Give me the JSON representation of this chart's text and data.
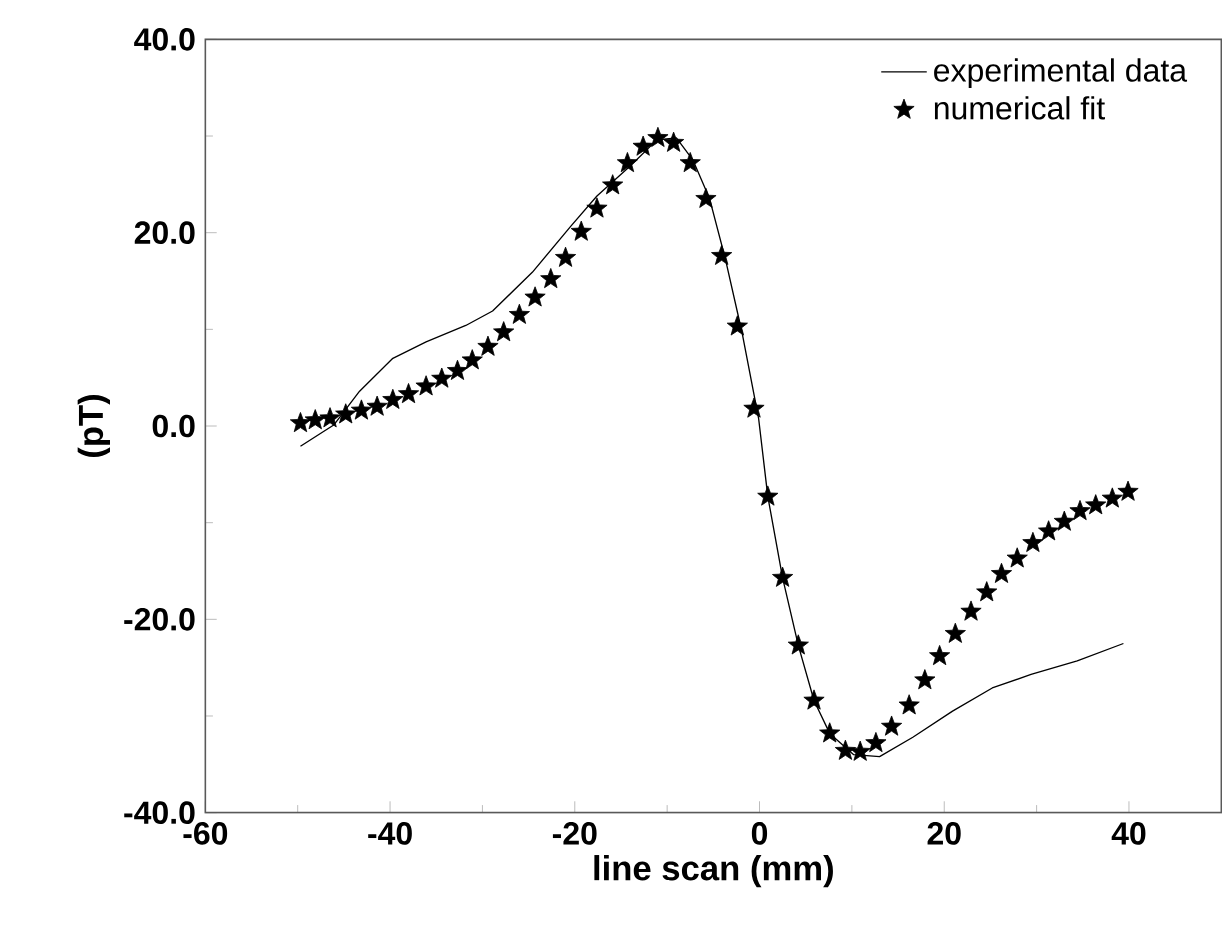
{
  "chart_data": {
    "type": "line",
    "xlabel": "line scan (mm)",
    "ylabel": "(pT)",
    "xlim": [
      -60,
      50
    ],
    "ylim": [
      -40,
      40
    ],
    "xticks": [
      -60,
      -40,
      -20,
      0,
      20,
      40
    ],
    "yticks": [
      {
        "value": -40,
        "label": "-40.0"
      },
      {
        "value": -20,
        "label": "-20.0"
      },
      {
        "value": 0,
        "label": "0.0"
      },
      {
        "value": 20,
        "label": "20.0"
      },
      {
        "value": 40,
        "label": "40.0"
      }
    ],
    "legend": "top right",
    "grid": false,
    "series": [
      {
        "name": "experimental data",
        "color": "#000000",
        "line_style": "solid",
        "marker": "none",
        "x": [
          -49.7,
          -46.1,
          -43.3,
          -39.7,
          -36.1,
          -31.8,
          -28.9,
          -24.6,
          -20.4,
          -17.6,
          -14.0,
          -11.1,
          -9.0,
          -7.2,
          -5.4,
          -3.7,
          -1.9,
          -0.1,
          0.9,
          2.5,
          4.2,
          5.9,
          7.6,
          10.2,
          13.0,
          16.6,
          20.9,
          25.2,
          29.4,
          34.4,
          39.4
        ],
        "values": [
          -2.1,
          0.1,
          3.6,
          7.0,
          8.7,
          10.4,
          11.9,
          15.9,
          20.7,
          23.8,
          26.9,
          29.6,
          29.8,
          27.5,
          23.5,
          17.3,
          9.7,
          0.8,
          -7.3,
          -15.7,
          -22.7,
          -28.4,
          -31.8,
          -34.0,
          -34.2,
          -32.2,
          -29.5,
          -27.1,
          -25.7,
          -24.3,
          -22.5
        ]
      },
      {
        "name": "numerical fit",
        "type": "scatter",
        "color": "#000000",
        "marker": "star",
        "x": [
          -49.7,
          -48.1,
          -46.5,
          -44.8,
          -43.1,
          -41.4,
          -39.7,
          -38.0,
          -36.1,
          -34.4,
          -32.7,
          -31.1,
          -29.4,
          -27.7,
          -26.0,
          -24.3,
          -22.6,
          -21.0,
          -19.3,
          -17.6,
          -15.9,
          -14.3,
          -12.6,
          -11.0,
          -9.3,
          -7.5,
          -5.8,
          -4.1,
          -2.4,
          -0.6,
          0.9,
          2.5,
          4.2,
          5.9,
          7.6,
          9.3,
          10.9,
          12.6,
          14.3,
          16.2,
          17.9,
          19.5,
          21.2,
          22.9,
          24.6,
          26.2,
          27.9,
          29.6,
          31.3,
          33.0,
          34.7,
          36.4,
          38.2,
          39.9
        ],
        "values": [
          0.3,
          0.6,
          0.8,
          1.2,
          1.6,
          2.0,
          2.7,
          3.3,
          4.1,
          4.9,
          5.7,
          6.8,
          8.2,
          9.7,
          11.5,
          13.3,
          15.2,
          17.4,
          20.1,
          22.5,
          24.9,
          27.2,
          28.9,
          29.8,
          29.3,
          27.2,
          23.5,
          17.6,
          10.3,
          1.8,
          -7.3,
          -15.7,
          -22.7,
          -28.4,
          -31.8,
          -33.6,
          -33.7,
          -32.8,
          -31.1,
          -28.9,
          -26.3,
          -23.8,
          -21.5,
          -19.2,
          -17.2,
          -15.3,
          -13.7,
          -12.1,
          -10.9,
          -9.9,
          -8.8,
          -8.2,
          -7.5,
          -6.8
        ]
      }
    ]
  }
}
